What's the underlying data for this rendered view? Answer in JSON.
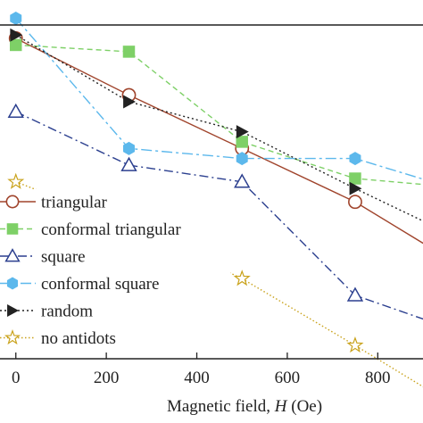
{
  "chart_data": {
    "type": "line",
    "xlabel_prefix": "Magnetic field, ",
    "xlabel_var": "H",
    "xlabel_unit": " (Oe)",
    "xlim": [
      -35,
      900
    ],
    "ylim": [
      0,
      1
    ],
    "grid": false,
    "legend_position": "bottom-left",
    "x_ticks": [
      0,
      200,
      400,
      600,
      800
    ],
    "x_tick_labels": [
      "0",
      "200",
      "400",
      "600",
      "800"
    ],
    "x": [
      0,
      250,
      500,
      750
    ],
    "series": [
      {
        "name": "triangular",
        "color": "#a0442c",
        "dash": "",
        "marker": "circle-open",
        "values": [
          0.96,
          0.79,
          0.63,
          0.47
        ],
        "end_value": 0.33
      },
      {
        "name": "conformal triangular",
        "color": "#7ed067",
        "dash": "6 4",
        "marker": "square-filled",
        "values": [
          0.94,
          0.92,
          0.65,
          0.54
        ],
        "end_value": 0.52
      },
      {
        "name": "square",
        "color": "#2b3f8f",
        "dash": "10 4 2 4",
        "marker": "triangle-open",
        "values": [
          0.74,
          0.58,
          0.53,
          0.19
        ],
        "end_value": 0.11
      },
      {
        "name": "conformal square",
        "color": "#5cb8ec",
        "dash": "12 4 3 4",
        "marker": "hexagon-filled",
        "values": [
          1.02,
          0.63,
          0.6,
          0.6
        ],
        "end_value": 0.53
      },
      {
        "name": "random",
        "color": "#222222",
        "dash": "2 3",
        "marker": "triangle-right-filled",
        "values": [
          0.97,
          0.77,
          0.68,
          0.51
        ],
        "end_value": 0.4
      },
      {
        "name": "no antidots",
        "color": "#c9a21b",
        "dash": "1.5 2.5",
        "marker": "star-open",
        "values": [
          0.53,
          0.4,
          0.24,
          0.04
        ],
        "end_value": -0.1
      }
    ]
  }
}
